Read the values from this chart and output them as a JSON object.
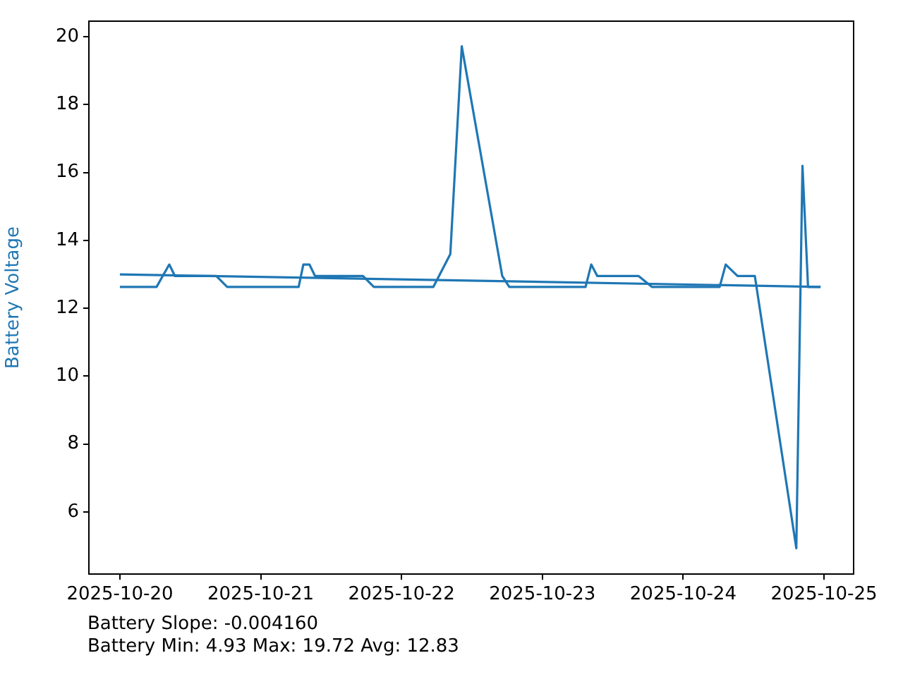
{
  "chart_data": {
    "type": "line",
    "ylabel": "Battery Voltage",
    "annotations": [
      "Battery Slope: -0.004160",
      "Battery Min: 4.93 Max: 19.72 Avg: 12.83"
    ],
    "xlim": [
      "2025-10-19T18:43",
      "2025-10-25T05:03"
    ],
    "xticks": [
      "2025-10-20",
      "2025-10-21",
      "2025-10-22",
      "2025-10-23",
      "2025-10-24",
      "2025-10-25"
    ],
    "ylim": [
      4.17,
      20.46
    ],
    "yticks": [
      6,
      8,
      10,
      12,
      14,
      16,
      18,
      20
    ],
    "grid": false,
    "legend": false,
    "marker": "none",
    "line_style": "solid",
    "series": [
      {
        "color": "#1f77b4",
        "x": [
          "2025-10-20T00:00",
          "2025-10-20T06:15",
          "2025-10-20T08:25",
          "2025-10-20T09:23",
          "2025-10-20T16:26",
          "2025-10-20T18:17",
          "2025-10-21T06:28",
          "2025-10-21T07:16",
          "2025-10-21T08:18",
          "2025-10-21T09:16",
          "2025-10-21T17:26",
          "2025-10-21T19:17",
          "2025-10-22T05:26",
          "2025-10-22T08:19",
          "2025-10-22T10:16",
          "2025-10-22T17:10",
          "2025-10-22T18:22",
          "2025-10-23T07:22",
          "2025-10-23T08:20",
          "2025-10-23T09:22",
          "2025-10-23T16:25",
          "2025-10-23T18:40",
          "2025-10-24T06:13",
          "2025-10-24T07:15",
          "2025-10-24T09:16",
          "2025-10-24T12:13",
          "2025-10-24T19:17",
          "2025-10-24T20:20",
          "2025-10-24T21:17",
          "2025-10-24T23:25"
        ],
        "values": [
          12.63,
          12.63,
          13.29,
          12.95,
          12.95,
          12.63,
          12.63,
          13.29,
          13.29,
          12.95,
          12.95,
          12.63,
          12.63,
          13.6,
          19.72,
          12.95,
          12.63,
          12.63,
          13.29,
          12.95,
          12.95,
          12.63,
          12.63,
          13.29,
          12.95,
          12.95,
          4.93,
          16.2,
          12.63,
          12.63
        ]
      },
      {
        "type": "line",
        "color": "#1f77b4",
        "x": [
          "2025-10-20T00:00",
          "2025-10-24T23:25"
        ],
        "values": [
          13.0,
          12.63
        ]
      }
    ]
  }
}
